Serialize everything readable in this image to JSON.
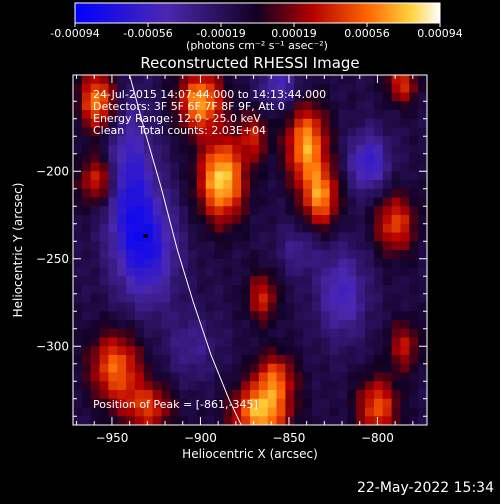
{
  "chart_data": {
    "type": "heatmap",
    "title": "Reconstructed RHESSI Image",
    "xlabel": "Heliocentric X (arcsec)",
    "ylabel": "Heliocentric Y (arcsec)",
    "xlim": [
      -972,
      -772
    ],
    "ylim": [
      -345,
      -145
    ],
    "xticks": [
      -950,
      -900,
      -850,
      -800
    ],
    "yticks": [
      -200,
      -250,
      -300
    ],
    "colorbar": {
      "ticks": [
        "-0.00094",
        "-0.00056",
        "-0.00019",
        "0.00019",
        "0.00056",
        "0.00094"
      ],
      "vmin": -0.00094,
      "vmax": 0.00094,
      "unit_label": "(photons cm⁻² s⁻¹ asec⁻²)"
    },
    "annotations": [
      "24-Jul-2015 14:07:44.000 to 14:13:44.000",
      "Detectors: 3F 5F 6F 7F 8F 9F, Att 0",
      "Energy Range: 12.0 - 25.0 keV",
      "Clean    Total counts: 2.03E+04"
    ],
    "peak_text": "Position of Peak = [-861,-345]",
    "min_marker": [
      -931,
      -237
    ],
    "limb": [
      [
        -940,
        -145
      ],
      [
        -932,
        -175
      ],
      [
        -922,
        -210
      ],
      [
        -913,
        -245
      ],
      [
        -904,
        -275
      ],
      [
        -894,
        -305
      ],
      [
        -884,
        -330
      ],
      [
        -877,
        -345
      ]
    ],
    "sources": [
      {
        "x": -958,
        "y": -160,
        "amp": 0.8,
        "sx": 7,
        "sy": 12
      },
      {
        "x": -958,
        "y": -205,
        "amp": 0.6,
        "sx": 7,
        "sy": 10
      },
      {
        "x": -900,
        "y": -160,
        "amp": 0.85,
        "sx": 9,
        "sy": 12
      },
      {
        "x": -888,
        "y": -205,
        "amp": 1.0,
        "sx": 9,
        "sy": 16
      },
      {
        "x": -870,
        "y": -180,
        "amp": 0.45,
        "sx": 6,
        "sy": 10
      },
      {
        "x": -840,
        "y": -185,
        "amp": 0.85,
        "sx": 8,
        "sy": 16
      },
      {
        "x": -832,
        "y": -215,
        "amp": 0.75,
        "sx": 7,
        "sy": 12
      },
      {
        "x": -786,
        "y": -150,
        "amp": 0.55,
        "sx": 6,
        "sy": 8
      },
      {
        "x": -790,
        "y": -230,
        "amp": 0.6,
        "sx": 8,
        "sy": 12
      },
      {
        "x": -865,
        "y": -272,
        "amp": 0.5,
        "sx": 6,
        "sy": 10
      },
      {
        "x": -948,
        "y": -312,
        "amp": 0.7,
        "sx": 10,
        "sy": 14
      },
      {
        "x": -930,
        "y": -335,
        "amp": 0.55,
        "sx": 10,
        "sy": 10
      },
      {
        "x": -866,
        "y": -338,
        "amp": 0.9,
        "sx": 11,
        "sy": 11
      },
      {
        "x": -858,
        "y": -318,
        "amp": 0.6,
        "sx": 8,
        "sy": 10
      },
      {
        "x": -800,
        "y": -335,
        "amp": 0.65,
        "sx": 8,
        "sy": 12
      },
      {
        "x": -785,
        "y": -300,
        "amp": 0.45,
        "sx": 6,
        "sy": 10
      },
      {
        "x": -940,
        "y": -205,
        "amp": -0.55,
        "sx": 10,
        "sy": 30
      },
      {
        "x": -930,
        "y": -245,
        "amp": -0.6,
        "sx": 12,
        "sy": 22
      },
      {
        "x": -855,
        "y": -150,
        "amp": -0.4,
        "sx": 8,
        "sy": 10
      },
      {
        "x": -805,
        "y": -195,
        "amp": -0.55,
        "sx": 8,
        "sy": 12
      },
      {
        "x": -820,
        "y": -270,
        "amp": -0.45,
        "sx": 10,
        "sy": 18
      },
      {
        "x": -845,
        "y": -245,
        "amp": -0.25,
        "sx": 8,
        "sy": 10
      },
      {
        "x": -905,
        "y": -300,
        "amp": -0.25,
        "sx": 10,
        "sy": 14
      }
    ]
  },
  "footer_date": "22-May-2022 15:34"
}
